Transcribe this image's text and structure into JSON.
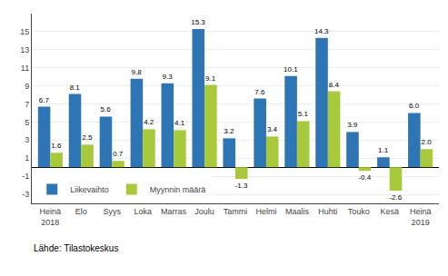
{
  "chart_data": {
    "type": "bar",
    "categories": [
      "Heinä\n2018",
      "Elo",
      "Syys",
      "Loka",
      "Marras",
      "Joulu",
      "Tammi",
      "Helmi",
      "Maalis",
      "Huhti",
      "Touko",
      "Kesä",
      "Heinä\n2019"
    ],
    "series": [
      {
        "name": "Liikevaihto",
        "color": "#2E75B6",
        "values": [
          6.7,
          8.1,
          5.6,
          9.8,
          9.3,
          15.3,
          3.2,
          7.6,
          10.1,
          14.3,
          3.9,
          1.1,
          6.0
        ],
        "value_labels": [
          "6.7",
          "8.1",
          "5.6",
          "9.8",
          "9.3",
          "15.3",
          "3.2",
          "7.6",
          "10.1",
          "14.3",
          "3.9",
          "1.1",
          "6.0"
        ]
      },
      {
        "name": "Myynnin määrä",
        "color": "#A9C93D",
        "values": [
          1.6,
          2.5,
          0.7,
          4.2,
          4.1,
          9.1,
          -1.3,
          3.4,
          5.1,
          8.4,
          -0.4,
          -2.6,
          2.0
        ],
        "value_labels": [
          "1.6",
          "2.5",
          "0.7",
          "4.2",
          "4.1",
          "9.1",
          "-1.3",
          "3.4",
          "5.1",
          "8.4",
          "-0.4",
          "-2.6",
          "2.0"
        ]
      }
    ],
    "ylim": [
      -4,
      17
    ],
    "yticks": [
      -3,
      -1,
      1,
      3,
      5,
      7,
      9,
      11,
      13,
      15
    ],
    "grid": true,
    "legend": "lower left",
    "data_labels": true,
    "annotations": [
      "Lähde: Tilastokeskus"
    ]
  }
}
